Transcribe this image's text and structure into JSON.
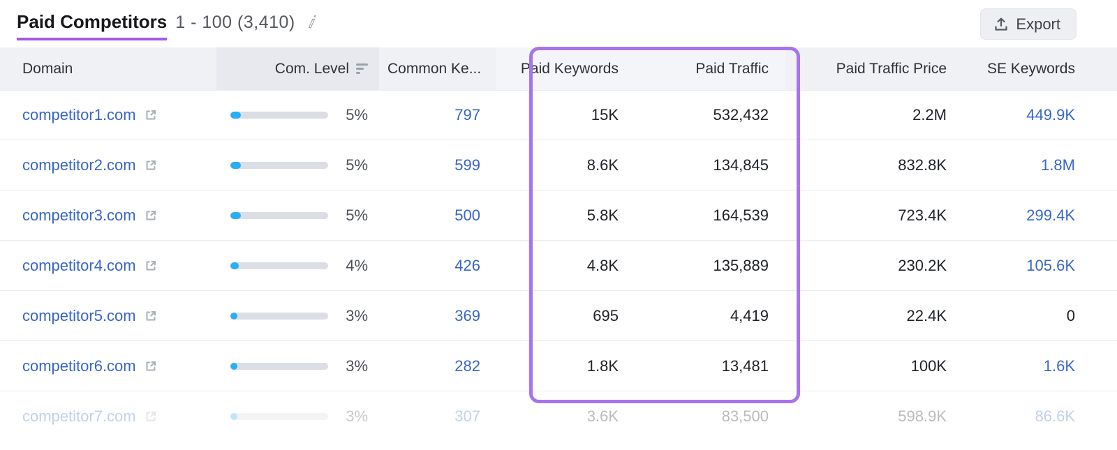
{
  "header": {
    "title": "Paid Competitors",
    "range": "1 - 100 (3,410)",
    "info_icon": "info-icon",
    "export_label": "Export"
  },
  "colors": {
    "accent_purple": "#a873eb",
    "title_underline": "#a259e8",
    "link_blue": "#3766c9",
    "bar_fill_blue": "#2aaef5",
    "bar_track_gray": "#dbdee4",
    "header_bg": "#eff1f5",
    "sorted_header_bg": "#e7e9ef"
  },
  "table": {
    "columns": {
      "domain": "Domain",
      "com_level": "Com. Level",
      "common_keywords": "Common Ke...",
      "paid_keywords": "Paid Keywords",
      "paid_traffic": "Paid Traffic",
      "paid_traffic_price": "Paid Traffic Price",
      "se_keywords": "SE Keywords"
    },
    "sorted_column": "com_level",
    "rows": [
      {
        "domain": "competitor1.com",
        "com_level_pct": 5,
        "com_level": "5%",
        "common_keywords": "797",
        "paid_keywords": "15K",
        "paid_traffic": "532,432",
        "paid_traffic_price": "2.2M",
        "se_keywords": "449.9K"
      },
      {
        "domain": "competitor2.com",
        "com_level_pct": 5,
        "com_level": "5%",
        "common_keywords": "599",
        "paid_keywords": "8.6K",
        "paid_traffic": "134,845",
        "paid_traffic_price": "832.8K",
        "se_keywords": "1.8M"
      },
      {
        "domain": "competitor3.com",
        "com_level_pct": 5,
        "com_level": "5%",
        "common_keywords": "500",
        "paid_keywords": "5.8K",
        "paid_traffic": "164,539",
        "paid_traffic_price": "723.4K",
        "se_keywords": "299.4K"
      },
      {
        "domain": "competitor4.com",
        "com_level_pct": 4,
        "com_level": "4%",
        "common_keywords": "426",
        "paid_keywords": "4.8K",
        "paid_traffic": "135,889",
        "paid_traffic_price": "230.2K",
        "se_keywords": "105.6K"
      },
      {
        "domain": "competitor5.com",
        "com_level_pct": 3,
        "com_level": "3%",
        "common_keywords": "369",
        "paid_keywords": "695",
        "paid_traffic": "4,419",
        "paid_traffic_price": "22.4K",
        "se_keywords": "0"
      },
      {
        "domain": "competitor6.com",
        "com_level_pct": 3,
        "com_level": "3%",
        "common_keywords": "282",
        "paid_keywords": "1.8K",
        "paid_traffic": "13,481",
        "paid_traffic_price": "100K",
        "se_keywords": "1.6K"
      },
      {
        "domain": "competitor7.com",
        "com_level_pct": 3,
        "com_level": "3%",
        "common_keywords": "307",
        "paid_keywords": "3.6K",
        "paid_traffic": "83,500",
        "paid_traffic_price": "598.9K",
        "se_keywords": "86.6K"
      }
    ]
  }
}
